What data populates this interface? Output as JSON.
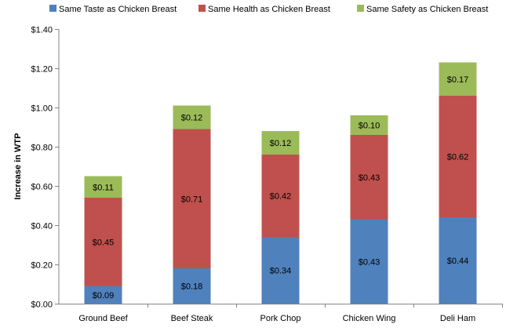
{
  "chart_data": {
    "type": "bar",
    "stacked": true,
    "title": "",
    "xlabel": "",
    "ylabel": "Increase in WTP",
    "ylim": [
      0,
      1.4
    ],
    "ytick_step": 0.2,
    "ytick_labels": [
      "$0.00",
      "$0.20",
      "$0.40",
      "$0.60",
      "$0.80",
      "$1.00",
      "$1.20",
      "$1.40"
    ],
    "categories": [
      "Ground Beef",
      "Beef Steak",
      "Pork Chop",
      "Chicken Wing",
      "Deli Ham"
    ],
    "series": [
      {
        "name": "Same Taste as Chicken Breast",
        "color": "#4f81bd",
        "values": [
          0.09,
          0.18,
          0.34,
          0.43,
          0.44
        ],
        "labels": [
          "$0.09",
          "$0.18",
          "$0.34",
          "$0.43",
          "$0.44"
        ]
      },
      {
        "name": "Same Health as Chicken Breast",
        "color": "#c0504d",
        "values": [
          0.45,
          0.71,
          0.42,
          0.43,
          0.62
        ],
        "labels": [
          "$0.45",
          "$0.71",
          "$0.42",
          "$0.43",
          "$0.62"
        ]
      },
      {
        "name": "Same Safety as Chicken Breast",
        "color": "#9bbb59",
        "values": [
          0.11,
          0.12,
          0.12,
          0.1,
          0.17
        ],
        "labels": [
          "$0.11",
          "$0.12",
          "$0.12",
          "$0.10",
          "$0.17"
        ]
      }
    ],
    "legend": "top",
    "grid": false
  }
}
